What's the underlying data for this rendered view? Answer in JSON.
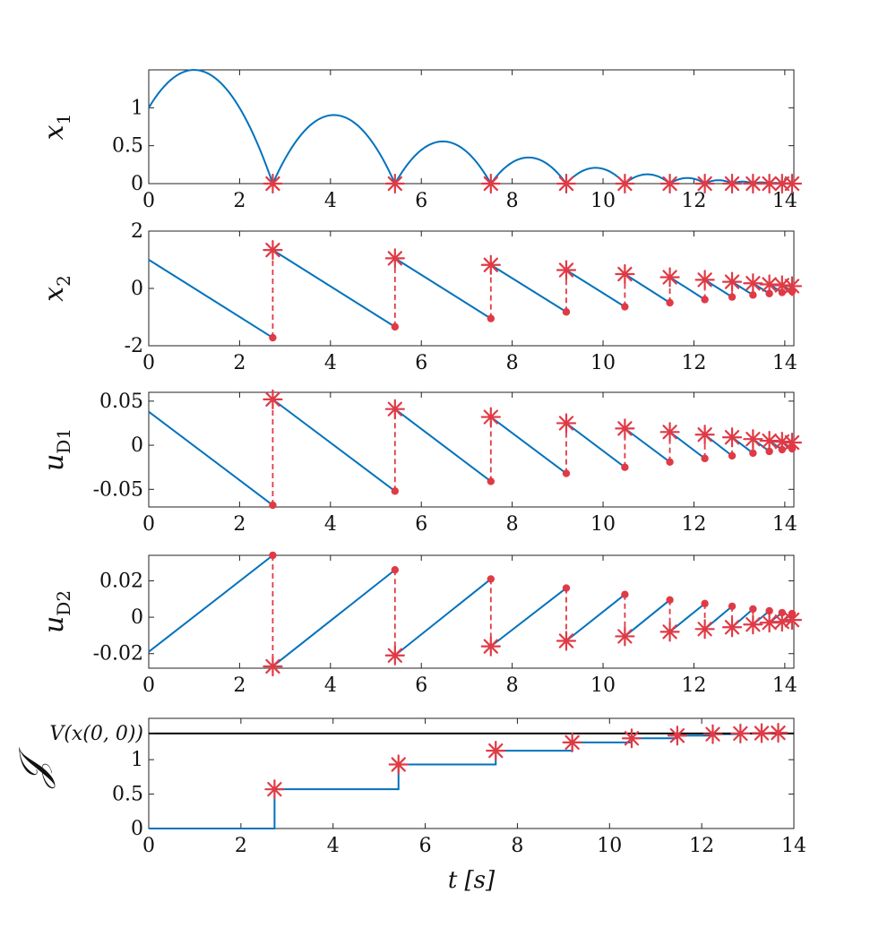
{
  "colors": {
    "series": "#0072bd",
    "jump": "#e03a45",
    "reference": "#000000",
    "axis": "#222222"
  },
  "chart_data": [
    {
      "type": "line",
      "name": "x1",
      "ylabel": "x",
      "ylabel_sub": "1",
      "xlim": [
        0,
        14.2
      ],
      "ylim": [
        0,
        1.5
      ],
      "xticks": [
        0,
        2,
        4,
        6,
        8,
        10,
        12,
        14
      ],
      "yticks": [
        0,
        0.5,
        1
      ],
      "ytick_labels": [
        "0",
        "0.5",
        "1"
      ],
      "flow": "bounce",
      "jump_times": [
        2.73,
        5.42,
        7.53,
        9.19,
        10.48,
        11.47,
        12.24,
        12.84,
        13.3,
        13.66,
        13.94,
        14.16
      ],
      "initial": 1.0,
      "initial_velocity": 1.0,
      "gravity": 1.0,
      "restitution": 0.78
    },
    {
      "type": "line",
      "name": "x2",
      "ylabel": "x",
      "ylabel_sub": "2",
      "xlim": [
        0,
        14.2
      ],
      "ylim": [
        -2,
        2
      ],
      "xticks": [
        0,
        2,
        4,
        6,
        8,
        10,
        12,
        14
      ],
      "yticks": [
        -2,
        0,
        2
      ],
      "ytick_labels": [
        "-2",
        "0",
        "2"
      ],
      "flow": "linear",
      "segments": [
        {
          "t0": 0,
          "v0": 1.0,
          "t1": 2.73,
          "v1": -1.72
        },
        {
          "t0": 2.73,
          "v0": 1.34,
          "t1": 5.42,
          "v1": -1.34
        },
        {
          "t0": 5.42,
          "v0": 1.05,
          "t1": 7.53,
          "v1": -1.05
        },
        {
          "t0": 7.53,
          "v0": 0.82,
          "t1": 9.19,
          "v1": -0.82
        },
        {
          "t0": 9.19,
          "v0": 0.64,
          "t1": 10.48,
          "v1": -0.64
        },
        {
          "t0": 10.48,
          "v0": 0.5,
          "t1": 11.47,
          "v1": -0.5
        },
        {
          "t0": 11.47,
          "v0": 0.39,
          "t1": 12.24,
          "v1": -0.39
        },
        {
          "t0": 12.24,
          "v0": 0.3,
          "t1": 12.84,
          "v1": -0.3
        },
        {
          "t0": 12.84,
          "v0": 0.23,
          "t1": 13.3,
          "v1": -0.23
        },
        {
          "t0": 13.3,
          "v0": 0.18,
          "t1": 13.66,
          "v1": -0.18
        },
        {
          "t0": 13.66,
          "v0": 0.14,
          "t1": 13.94,
          "v1": -0.14
        },
        {
          "t0": 13.94,
          "v0": 0.11,
          "t1": 14.16,
          "v1": -0.11
        }
      ],
      "jumps": [
        {
          "t": 2.73,
          "pre": -1.72,
          "post": 1.34
        },
        {
          "t": 5.42,
          "pre": -1.34,
          "post": 1.05
        },
        {
          "t": 7.53,
          "pre": -1.05,
          "post": 0.82
        },
        {
          "t": 9.19,
          "pre": -0.82,
          "post": 0.64
        },
        {
          "t": 10.48,
          "pre": -0.64,
          "post": 0.5
        },
        {
          "t": 11.47,
          "pre": -0.5,
          "post": 0.39
        },
        {
          "t": 12.24,
          "pre": -0.39,
          "post": 0.3
        },
        {
          "t": 12.84,
          "pre": -0.3,
          "post": 0.23
        },
        {
          "t": 13.3,
          "pre": -0.23,
          "post": 0.18
        },
        {
          "t": 13.66,
          "pre": -0.18,
          "post": 0.14
        },
        {
          "t": 13.94,
          "pre": -0.14,
          "post": 0.11
        },
        {
          "t": 14.16,
          "pre": -0.11,
          "post": 0.08
        }
      ]
    },
    {
      "type": "line",
      "name": "uD1",
      "ylabel": "u",
      "ylabel_sub": "D1",
      "xlim": [
        0,
        14.2
      ],
      "ylim": [
        -0.07,
        0.06
      ],
      "xticks": [
        0,
        2,
        4,
        6,
        8,
        10,
        12,
        14
      ],
      "yticks": [
        -0.05,
        0,
        0.05
      ],
      "ytick_labels": [
        "-0.05",
        "0",
        "0.05"
      ],
      "flow": "linear",
      "segments": [
        {
          "t0": 0,
          "v0": 0.038,
          "t1": 2.73,
          "v1": -0.068
        },
        {
          "t0": 2.73,
          "v0": 0.052,
          "t1": 5.42,
          "v1": -0.052
        },
        {
          "t0": 5.42,
          "v0": 0.041,
          "t1": 7.53,
          "v1": -0.041
        },
        {
          "t0": 7.53,
          "v0": 0.032,
          "t1": 9.19,
          "v1": -0.032
        },
        {
          "t0": 9.19,
          "v0": 0.025,
          "t1": 10.48,
          "v1": -0.025
        },
        {
          "t0": 10.48,
          "v0": 0.019,
          "t1": 11.47,
          "v1": -0.019
        },
        {
          "t0": 11.47,
          "v0": 0.015,
          "t1": 12.24,
          "v1": -0.015
        },
        {
          "t0": 12.24,
          "v0": 0.012,
          "t1": 12.84,
          "v1": -0.012
        },
        {
          "t0": 12.84,
          "v0": 0.009,
          "t1": 13.3,
          "v1": -0.009
        },
        {
          "t0": 13.3,
          "v0": 0.007,
          "t1": 13.66,
          "v1": -0.007
        },
        {
          "t0": 13.66,
          "v0": 0.005,
          "t1": 13.94,
          "v1": -0.005
        },
        {
          "t0": 13.94,
          "v0": 0.004,
          "t1": 14.16,
          "v1": -0.004
        }
      ],
      "jumps": [
        {
          "t": 2.73,
          "pre": -0.068,
          "post": 0.052
        },
        {
          "t": 5.42,
          "pre": -0.052,
          "post": 0.041
        },
        {
          "t": 7.53,
          "pre": -0.041,
          "post": 0.032
        },
        {
          "t": 9.19,
          "pre": -0.032,
          "post": 0.025
        },
        {
          "t": 10.48,
          "pre": -0.025,
          "post": 0.019
        },
        {
          "t": 11.47,
          "pre": -0.019,
          "post": 0.015
        },
        {
          "t": 12.24,
          "pre": -0.015,
          "post": 0.012
        },
        {
          "t": 12.84,
          "pre": -0.012,
          "post": 0.009
        },
        {
          "t": 13.3,
          "pre": -0.009,
          "post": 0.007
        },
        {
          "t": 13.66,
          "pre": -0.007,
          "post": 0.005
        },
        {
          "t": 13.94,
          "pre": -0.005,
          "post": 0.004
        },
        {
          "t": 14.16,
          "pre": -0.004,
          "post": 0.003
        }
      ]
    },
    {
      "type": "line",
      "name": "uD2",
      "ylabel": "u",
      "ylabel_sub": "D2",
      "xlim": [
        0,
        14.2
      ],
      "ylim": [
        -0.028,
        0.034
      ],
      "xticks": [
        0,
        2,
        4,
        6,
        8,
        10,
        12,
        14
      ],
      "yticks": [
        -0.02,
        0,
        0.02
      ],
      "ytick_labels": [
        "-0.02",
        "0",
        "0.02"
      ],
      "flow": "linear",
      "segments": [
        {
          "t0": 0,
          "v0": -0.019,
          "t1": 2.73,
          "v1": 0.034
        },
        {
          "t0": 2.73,
          "v0": -0.027,
          "t1": 5.42,
          "v1": 0.026
        },
        {
          "t0": 5.42,
          "v0": -0.021,
          "t1": 7.53,
          "v1": 0.021
        },
        {
          "t0": 7.53,
          "v0": -0.016,
          "t1": 9.19,
          "v1": 0.016
        },
        {
          "t0": 9.19,
          "v0": -0.013,
          "t1": 10.48,
          "v1": 0.0125
        },
        {
          "t0": 10.48,
          "v0": -0.0105,
          "t1": 11.47,
          "v1": 0.0095
        },
        {
          "t0": 11.47,
          "v0": -0.008,
          "t1": 12.24,
          "v1": 0.0075
        },
        {
          "t0": 12.24,
          "v0": -0.0065,
          "t1": 12.84,
          "v1": 0.006
        },
        {
          "t0": 12.84,
          "v0": -0.0055,
          "t1": 13.3,
          "v1": 0.0045
        },
        {
          "t0": 13.3,
          "v0": -0.004,
          "t1": 13.66,
          "v1": 0.0035
        },
        {
          "t0": 13.66,
          "v0": -0.003,
          "t1": 13.94,
          "v1": 0.0025
        },
        {
          "t0": 13.94,
          "v0": -0.0025,
          "t1": 14.16,
          "v1": 0.002
        }
      ],
      "jumps": [
        {
          "t": 2.73,
          "pre": 0.034,
          "post": -0.027
        },
        {
          "t": 5.42,
          "pre": 0.026,
          "post": -0.021
        },
        {
          "t": 7.53,
          "pre": 0.021,
          "post": -0.016
        },
        {
          "t": 9.19,
          "pre": 0.016,
          "post": -0.013
        },
        {
          "t": 10.48,
          "pre": 0.0125,
          "post": -0.0105
        },
        {
          "t": 11.47,
          "pre": 0.0095,
          "post": -0.008
        },
        {
          "t": 12.24,
          "pre": 0.0075,
          "post": -0.0065
        },
        {
          "t": 12.84,
          "pre": 0.006,
          "post": -0.0055
        },
        {
          "t": 13.3,
          "pre": 0.0045,
          "post": -0.004
        },
        {
          "t": 13.66,
          "pre": 0.0035,
          "post": -0.003
        },
        {
          "t": 13.94,
          "pre": 0.0025,
          "post": -0.0025
        },
        {
          "t": 14.16,
          "pre": 0.002,
          "post": -0.0015
        }
      ]
    },
    {
      "type": "step",
      "name": "J",
      "ylabel": "𝒥",
      "ylabel_sub": "",
      "xlim": [
        0,
        14
      ],
      "ylim": [
        0,
        1.6
      ],
      "xticks": [
        0,
        2,
        4,
        6,
        8,
        10,
        12,
        14
      ],
      "yticks": [
        0,
        0.5,
        1
      ],
      "ytick_labels": [
        "0",
        "0.5",
        "1"
      ],
      "reference_value": 1.38,
      "reference_label": "V(x(0, 0))",
      "xlabel": "t [s]",
      "jump_times": [
        2.73,
        5.42,
        7.53,
        9.19,
        10.48,
        11.47,
        12.24,
        12.84,
        13.3,
        13.66
      ],
      "levels": [
        0,
        0.57,
        0.93,
        1.13,
        1.25,
        1.31,
        1.35,
        1.37,
        1.38,
        1.385,
        1.39
      ]
    }
  ]
}
